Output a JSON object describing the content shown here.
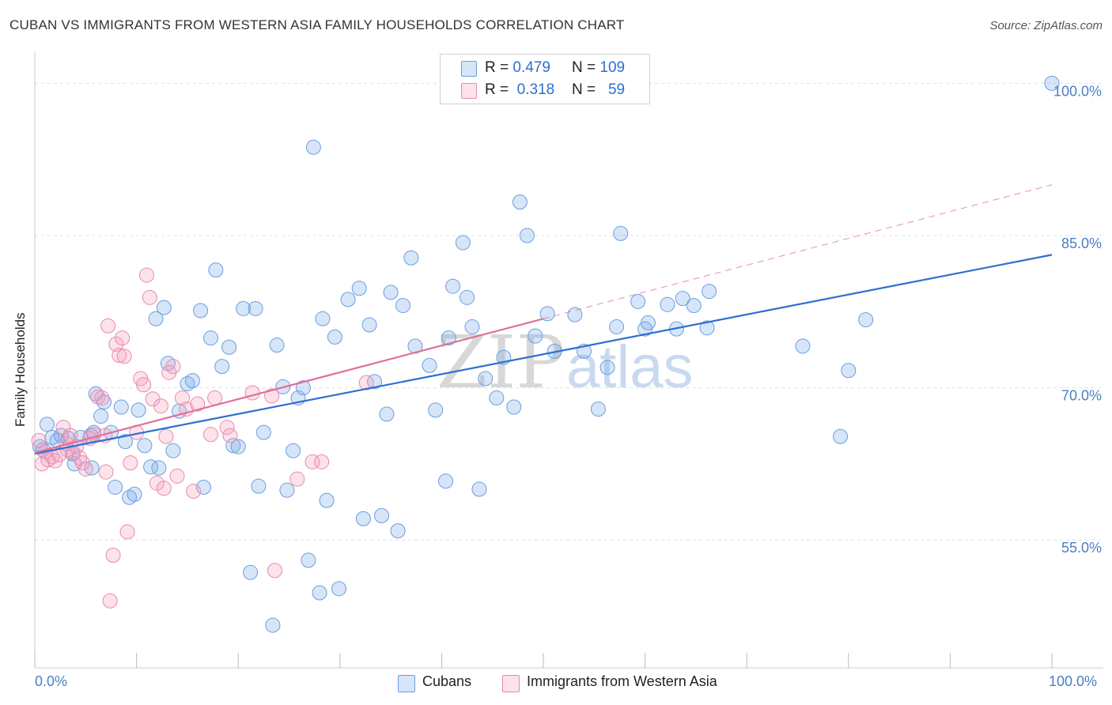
{
  "title": "CUBAN VS IMMIGRANTS FROM WESTERN ASIA FAMILY HOUSEHOLDS CORRELATION CHART",
  "source": "Source: ZipAtlas.com",
  "watermark": {
    "zip": "ZIP",
    "atlas": "atlas"
  },
  "legend_top": {
    "rows": [
      {
        "r_label": "R =",
        "r_value": "0.479",
        "n_label": "N =",
        "n_value": "109",
        "color": "#7aaae8"
      },
      {
        "r_label": "R =",
        "r_value": "0.318",
        "n_label": "N =",
        "n_value": "59",
        "color": "#f4a0bd"
      }
    ]
  },
  "legend_bottom": {
    "series_a": "Cubans",
    "series_b": "Immigrants from Western Asia"
  },
  "colors": {
    "blue_fill": "rgba(122,170,232,0.30)",
    "blue_stroke": "#6a9ee0",
    "blue_line": "#2d6fd1",
    "pink_fill": "rgba(244,160,189,0.30)",
    "pink_stroke": "#e88aab",
    "pink_line": "#e0709a",
    "axis_text": "#4a7fc4",
    "grid": "#e0e0e0"
  },
  "chart_data": {
    "type": "scatter",
    "title": "CUBAN VS IMMIGRANTS FROM WESTERN ASIA FAMILY HOUSEHOLDS CORRELATION CHART",
    "xlabel": "",
    "ylabel": "Family Households",
    "xlim": [
      0,
      100
    ],
    "ylim": [
      42.4,
      102.6
    ],
    "x_tick_labels": [
      "0.0%",
      "100.0%"
    ],
    "y_ticks": [
      55,
      70,
      85,
      100
    ],
    "y_tick_labels": [
      "55.0%",
      "70.0%",
      "85.0%",
      "100.0%"
    ],
    "series": [
      {
        "name": "Cubans",
        "r": 0.479,
        "n": 109,
        "trend": {
          "x0": 0,
          "y0": 63.5,
          "x1": 100,
          "y1": 83.1
        },
        "points": [
          [
            0.5,
            64.2
          ],
          [
            0.8,
            63.9
          ],
          [
            1.2,
            66.4
          ],
          [
            1.7,
            65.1
          ],
          [
            2.2,
            64.8
          ],
          [
            2.6,
            65.3
          ],
          [
            3.3,
            65.0
          ],
          [
            3.7,
            63.5
          ],
          [
            3.9,
            62.5
          ],
          [
            4.5,
            65.1
          ],
          [
            5.5,
            65.3
          ],
          [
            5.6,
            62.1
          ],
          [
            5.8,
            65.6
          ],
          [
            6.0,
            69.4
          ],
          [
            6.5,
            67.2
          ],
          [
            6.8,
            68.6
          ],
          [
            7.5,
            65.6
          ],
          [
            7.9,
            60.2
          ],
          [
            8.5,
            68.1
          ],
          [
            8.9,
            64.7
          ],
          [
            9.3,
            59.2
          ],
          [
            9.8,
            59.5
          ],
          [
            10.2,
            67.8
          ],
          [
            10.8,
            64.3
          ],
          [
            11.4,
            62.2
          ],
          [
            11.9,
            76.8
          ],
          [
            12.2,
            62.1
          ],
          [
            12.7,
            77.9
          ],
          [
            13.1,
            72.4
          ],
          [
            13.6,
            63.8
          ],
          [
            14.2,
            67.7
          ],
          [
            15.0,
            70.4
          ],
          [
            15.5,
            70.7
          ],
          [
            16.3,
            77.6
          ],
          [
            16.6,
            60.2
          ],
          [
            17.3,
            74.9
          ],
          [
            17.8,
            81.6
          ],
          [
            18.4,
            72.1
          ],
          [
            19.1,
            74.0
          ],
          [
            19.5,
            64.3
          ],
          [
            20.0,
            64.2
          ],
          [
            20.5,
            77.8
          ],
          [
            21.7,
            77.8
          ],
          [
            21.2,
            51.8
          ],
          [
            22.0,
            60.3
          ],
          [
            22.5,
            65.6
          ],
          [
            23.4,
            46.6
          ],
          [
            23.8,
            74.2
          ],
          [
            24.4,
            70.1
          ],
          [
            24.8,
            59.9
          ],
          [
            25.4,
            63.8
          ],
          [
            25.9,
            69.0
          ],
          [
            26.4,
            70.0
          ],
          [
            26.9,
            53.0
          ],
          [
            27.4,
            93.7
          ],
          [
            28.0,
            49.8
          ],
          [
            28.3,
            76.8
          ],
          [
            28.7,
            58.9
          ],
          [
            29.5,
            75.0
          ],
          [
            29.9,
            50.2
          ],
          [
            30.8,
            78.7
          ],
          [
            31.9,
            79.8
          ],
          [
            32.3,
            57.1
          ],
          [
            32.9,
            76.2
          ],
          [
            33.4,
            70.6
          ],
          [
            34.1,
            57.4
          ],
          [
            34.6,
            67.4
          ],
          [
            35.0,
            79.4
          ],
          [
            35.7,
            55.9
          ],
          [
            36.2,
            78.1
          ],
          [
            37.0,
            82.8
          ],
          [
            37.4,
            74.1
          ],
          [
            38.8,
            72.2
          ],
          [
            39.4,
            67.8
          ],
          [
            40.4,
            60.8
          ],
          [
            40.7,
            74.9
          ],
          [
            41.1,
            80.0
          ],
          [
            42.1,
            84.3
          ],
          [
            42.5,
            78.9
          ],
          [
            43.0,
            76.0
          ],
          [
            43.7,
            60.0
          ],
          [
            44.3,
            70.9
          ],
          [
            45.4,
            69.0
          ],
          [
            46.1,
            73.0
          ],
          [
            47.1,
            68.1
          ],
          [
            47.7,
            88.3
          ],
          [
            48.4,
            85.0
          ],
          [
            49.2,
            75.1
          ],
          [
            50.4,
            77.3
          ],
          [
            51.1,
            73.6
          ],
          [
            53.1,
            77.2
          ],
          [
            54.0,
            73.6
          ],
          [
            55.4,
            67.9
          ],
          [
            56.3,
            72.0
          ],
          [
            57.2,
            76.0
          ],
          [
            57.6,
            85.2
          ],
          [
            59.3,
            78.5
          ],
          [
            60.0,
            75.8
          ],
          [
            60.3,
            76.4
          ],
          [
            62.2,
            78.2
          ],
          [
            63.1,
            75.8
          ],
          [
            63.7,
            78.8
          ],
          [
            64.8,
            78.1
          ],
          [
            66.1,
            75.9
          ],
          [
            66.3,
            79.5
          ],
          [
            75.5,
            74.1
          ],
          [
            79.2,
            65.2
          ],
          [
            80.0,
            71.7
          ],
          [
            81.7,
            76.7
          ],
          [
            100.0,
            100.0
          ]
        ]
      },
      {
        "name": "Immigrants from Western Asia",
        "r": 0.318,
        "n": 59,
        "trend": {
          "x0": 0,
          "y0": 63.6,
          "x1": 50,
          "y1": 76.8,
          "dash_x1": 100,
          "dash_y1": 90.0
        },
        "points": [
          [
            0.4,
            64.8
          ],
          [
            0.7,
            62.5
          ],
          [
            1.0,
            63.7
          ],
          [
            1.3,
            62.9
          ],
          [
            1.7,
            63.2
          ],
          [
            2.0,
            62.8
          ],
          [
            2.4,
            63.4
          ],
          [
            2.8,
            66.1
          ],
          [
            3.1,
            64.5
          ],
          [
            3.5,
            65.3
          ],
          [
            3.8,
            63.6
          ],
          [
            4.1,
            64.2
          ],
          [
            4.4,
            63.1
          ],
          [
            4.7,
            62.6
          ],
          [
            5.0,
            62.0
          ],
          [
            5.4,
            65.0
          ],
          [
            5.8,
            65.4
          ],
          [
            6.2,
            69.1
          ],
          [
            6.6,
            69.0
          ],
          [
            6.9,
            65.3
          ],
          [
            7.2,
            76.1
          ],
          [
            7.0,
            61.7
          ],
          [
            7.4,
            49.0
          ],
          [
            7.7,
            53.5
          ],
          [
            8.0,
            74.3
          ],
          [
            8.3,
            73.2
          ],
          [
            8.6,
            74.9
          ],
          [
            8.8,
            73.1
          ],
          [
            9.1,
            55.8
          ],
          [
            9.4,
            62.6
          ],
          [
            10.0,
            65.6
          ],
          [
            10.4,
            70.9
          ],
          [
            10.7,
            70.3
          ],
          [
            11.0,
            81.1
          ],
          [
            11.3,
            78.9
          ],
          [
            11.6,
            68.9
          ],
          [
            12.0,
            60.6
          ],
          [
            12.4,
            68.2
          ],
          [
            12.7,
            60.1
          ],
          [
            12.9,
            65.2
          ],
          [
            13.2,
            71.5
          ],
          [
            13.6,
            72.1
          ],
          [
            14.0,
            61.3
          ],
          [
            14.5,
            69.0
          ],
          [
            14.9,
            67.9
          ],
          [
            15.6,
            59.8
          ],
          [
            16.0,
            68.4
          ],
          [
            17.3,
            65.4
          ],
          [
            17.7,
            69.0
          ],
          [
            18.9,
            66.1
          ],
          [
            19.2,
            65.3
          ],
          [
            21.4,
            69.5
          ],
          [
            23.3,
            69.2
          ],
          [
            23.6,
            52.0
          ],
          [
            25.8,
            61.0
          ],
          [
            27.3,
            62.7
          ],
          [
            28.2,
            62.7
          ],
          [
            32.6,
            70.5
          ],
          [
            3.2,
            63.9
          ]
        ]
      }
    ]
  }
}
